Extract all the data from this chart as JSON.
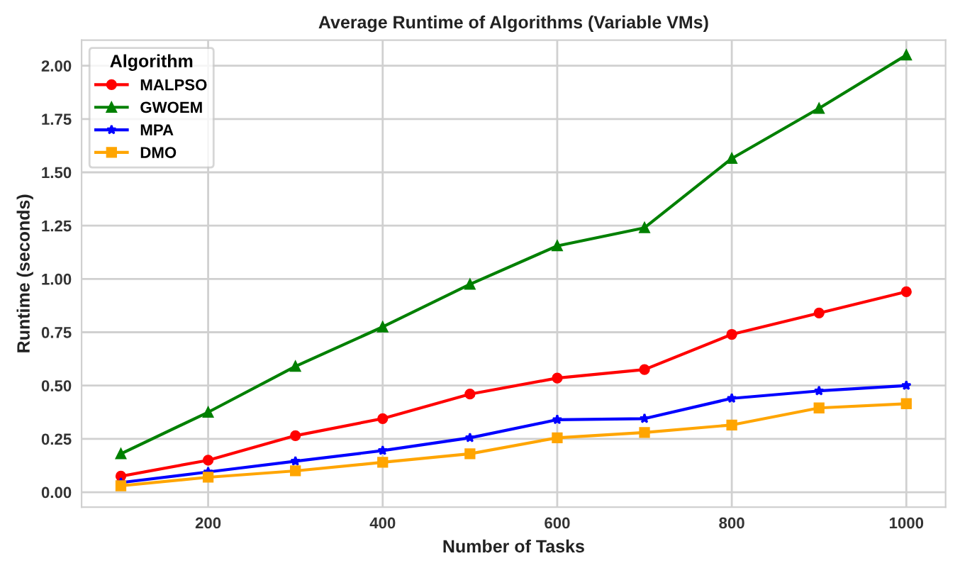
{
  "chart_data": {
    "type": "line",
    "title": "Average Runtime of Algorithms (Variable VMs)",
    "xlabel": "Number of Tasks",
    "ylabel": "Runtime (seconds)",
    "legend_title": "Algorithm",
    "legend": "top left",
    "grid": true,
    "line_style": "solid",
    "x": [
      100,
      200,
      300,
      400,
      500,
      600,
      700,
      800,
      900,
      1000
    ],
    "xlim": [
      55,
      1045
    ],
    "xticks": [
      200,
      400,
      600,
      800,
      1000
    ],
    "ylim": [
      -0.07,
      2.12
    ],
    "yticks": [
      {
        "value": 0,
        "label": "0.00"
      },
      {
        "value": 0.25,
        "label": "0.25"
      },
      {
        "value": 0.5,
        "label": "0.50"
      },
      {
        "value": 0.75,
        "label": "0.75"
      },
      {
        "value": 1.0,
        "label": "1.00"
      },
      {
        "value": 1.25,
        "label": "1.25"
      },
      {
        "value": 1.5,
        "label": "1.50"
      },
      {
        "value": 1.75,
        "label": "1.75"
      },
      {
        "value": 2.0,
        "label": "2.00"
      }
    ],
    "series": [
      {
        "name": "MALPSO",
        "color": "#ff0000",
        "marker": "circle",
        "values": [
          0.075,
          0.15,
          0.265,
          0.345,
          0.46,
          0.535,
          0.575,
          0.74,
          0.84,
          0.94
        ]
      },
      {
        "name": "GWOEM",
        "color": "#008000",
        "marker": "triangle",
        "values": [
          0.18,
          0.375,
          0.59,
          0.775,
          0.975,
          1.155,
          1.24,
          1.565,
          1.8,
          2.05
        ]
      },
      {
        "name": "MPA",
        "color": "#0000ff",
        "marker": "star",
        "values": [
          0.045,
          0.095,
          0.145,
          0.195,
          0.255,
          0.34,
          0.345,
          0.44,
          0.475,
          0.5
        ]
      },
      {
        "name": "DMO",
        "color": "#ffa500",
        "marker": "square",
        "values": [
          0.03,
          0.07,
          0.1,
          0.14,
          0.18,
          0.255,
          0.28,
          0.315,
          0.395,
          0.415
        ]
      }
    ]
  }
}
